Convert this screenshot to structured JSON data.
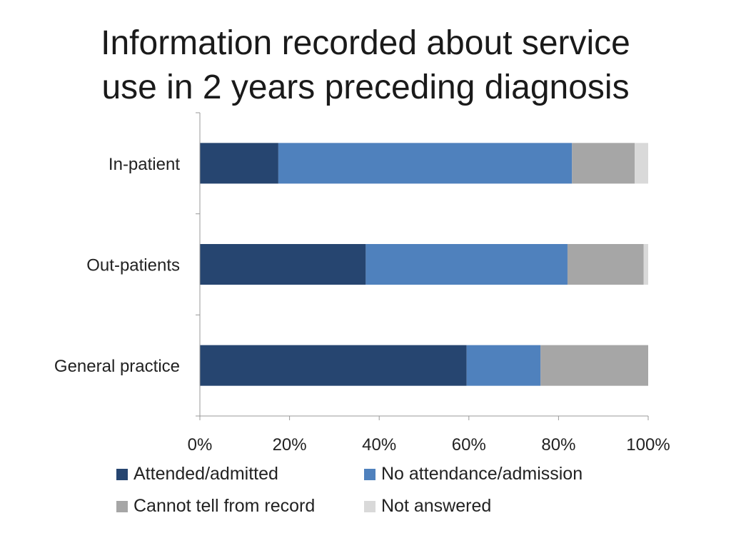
{
  "title": {
    "line1": "Information recorded about service",
    "line2": "use in 2 years preceding diagnosis"
  },
  "chart_data": {
    "type": "bar",
    "orientation": "horizontal",
    "stacked": "percent",
    "categories": [
      "In-patient",
      "Out-patients",
      "General practice"
    ],
    "series": [
      {
        "name": "Attended/admitted",
        "color": "#264570",
        "values": [
          17.5,
          37,
          59.5
        ]
      },
      {
        "name": "No attendance/admission",
        "color": "#4f81bd",
        "values": [
          65.5,
          45,
          16.5
        ]
      },
      {
        "name": "Cannot tell from record",
        "color": "#a6a6a6",
        "values": [
          14,
          17,
          24
        ]
      },
      {
        "name": "Not answered",
        "color": "#d9d9d9",
        "values": [
          3,
          1,
          0
        ]
      }
    ],
    "xlim": [
      0,
      100
    ],
    "xticks": [
      "0%",
      "20%",
      "40%",
      "60%",
      "80%",
      "100%"
    ],
    "grid": false,
    "legend_position": "bottom"
  }
}
